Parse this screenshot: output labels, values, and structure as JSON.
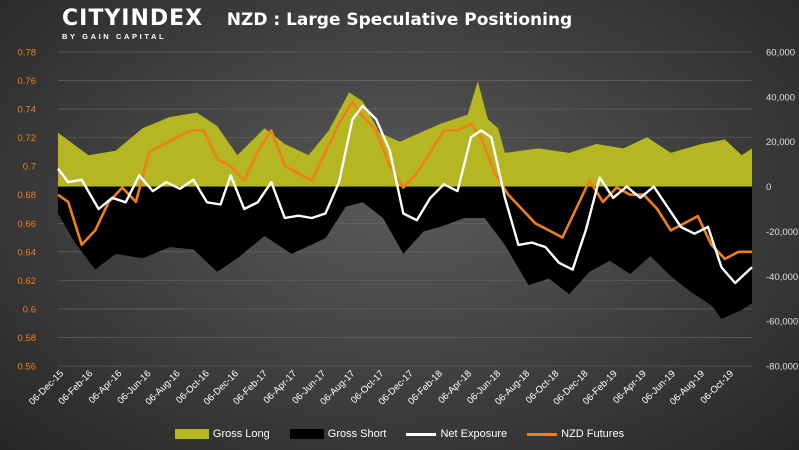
{
  "logo": {
    "main": "CITYINDEX",
    "sub": "BY GAIN CAPITAL"
  },
  "colors": {
    "gross_long": "#b5b722",
    "gross_short": "#000000",
    "net": "#ffffff",
    "futures": "#f07f1a",
    "left_tick": "#f07f1a",
    "right_tick": "#e0e0e0"
  },
  "chart_data": {
    "type": "area",
    "title": "NZD : Large Speculative Positioning",
    "xlabel": "",
    "y_left": {
      "label": "",
      "range": [
        0.56,
        0.78
      ],
      "ticks": [
        "0.56",
        "0.58",
        "0.6",
        "0.62",
        "0.64",
        "0.66",
        "0.68",
        "0.7",
        "0.72",
        "0.74",
        "0.76",
        "0.78"
      ]
    },
    "y_right": {
      "label": "",
      "range": [
        -80000,
        60000
      ],
      "ticks": [
        "-80,000",
        "-60,000",
        "-40,000",
        "-20,000",
        "0",
        "20,000",
        "40,000",
        "60,000"
      ]
    },
    "x_ticks": [
      "06-Dec-15",
      "06-Feb-16",
      "06-Apr-16",
      "06-Jun-16",
      "06-Aug-16",
      "06-Oct-16",
      "06-Dec-16",
      "06-Feb-17",
      "06-Apr-17",
      "06-Jun-17",
      "06-Aug-17",
      "06-Oct-17",
      "06-Dec-17",
      "06-Feb-18",
      "06-Apr-18",
      "06-Jun-18",
      "06-Aug-18",
      "06-Oct-18",
      "06-Dec-18",
      "06-Feb-19",
      "06-Apr-19",
      "06-Jun-19",
      "06-Aug-19",
      "06-Oct-19"
    ],
    "x_start": "2015-12-06",
    "x_end": "2019-11-10",
    "legend_position": "bottom",
    "series": [
      {
        "name": "Gross Long",
        "axis": "right",
        "type": "area",
        "points": [
          [
            "2015-12-06",
            24000
          ],
          [
            "2016-02-07",
            14000
          ],
          [
            "2016-04-03",
            16000
          ],
          [
            "2016-05-29",
            26000
          ],
          [
            "2016-07-24",
            31000
          ],
          [
            "2016-09-18",
            33000
          ],
          [
            "2016-10-30",
            27000
          ],
          [
            "2016-12-11",
            14000
          ],
          [
            "2017-02-05",
            26000
          ],
          [
            "2017-03-19",
            19000
          ],
          [
            "2017-05-07",
            14000
          ],
          [
            "2017-06-18",
            25000
          ],
          [
            "2017-07-30",
            42000
          ],
          [
            "2017-08-27",
            38000
          ],
          [
            "2017-10-01",
            24000
          ],
          [
            "2017-11-12",
            20000
          ],
          [
            "2017-12-24",
            24000
          ],
          [
            "2018-02-04",
            28000
          ],
          [
            "2018-04-01",
            32000
          ],
          [
            "2018-04-22",
            47000
          ],
          [
            "2018-05-13",
            30000
          ],
          [
            "2018-06-03",
            26000
          ],
          [
            "2018-06-17",
            15000
          ],
          [
            "2018-08-26",
            17000
          ],
          [
            "2018-10-28",
            15000
          ],
          [
            "2018-12-23",
            19000
          ],
          [
            "2019-02-17",
            17000
          ],
          [
            "2019-04-07",
            22000
          ],
          [
            "2019-05-26",
            15000
          ],
          [
            "2019-07-28",
            19000
          ],
          [
            "2019-09-15",
            21000
          ],
          [
            "2019-10-20",
            14000
          ],
          [
            "2019-11-10",
            17000
          ]
        ]
      },
      {
        "name": "Gross Short",
        "axis": "right",
        "type": "area",
        "points": [
          [
            "2015-12-06",
            -12000
          ],
          [
            "2016-01-10",
            -25000
          ],
          [
            "2016-02-21",
            -37000
          ],
          [
            "2016-04-03",
            -30000
          ],
          [
            "2016-05-29",
            -32000
          ],
          [
            "2016-07-24",
            -27000
          ],
          [
            "2016-09-11",
            -28000
          ],
          [
            "2016-10-30",
            -38000
          ],
          [
            "2016-12-11",
            -32000
          ],
          [
            "2017-02-05",
            -22000
          ],
          [
            "2017-04-02",
            -30000
          ],
          [
            "2017-06-11",
            -23000
          ],
          [
            "2017-07-23",
            -9000
          ],
          [
            "2017-08-27",
            -7000
          ],
          [
            "2017-10-08",
            -14000
          ],
          [
            "2017-11-19",
            -30000
          ],
          [
            "2017-12-31",
            -20000
          ],
          [
            "2018-02-04",
            -18000
          ],
          [
            "2018-03-25",
            -14000
          ],
          [
            "2018-05-06",
            -14000
          ],
          [
            "2018-06-17",
            -26000
          ],
          [
            "2018-08-05",
            -44000
          ],
          [
            "2018-09-16",
            -41000
          ],
          [
            "2018-10-28",
            -48000
          ],
          [
            "2018-12-09",
            -38000
          ],
          [
            "2019-01-20",
            -33000
          ],
          [
            "2019-03-03",
            -39000
          ],
          [
            "2019-04-14",
            -31000
          ],
          [
            "2019-05-26",
            -40000
          ],
          [
            "2019-07-07",
            -47000
          ],
          [
            "2019-08-18",
            -53000
          ],
          [
            "2019-09-08",
            -59000
          ],
          [
            "2019-10-20",
            -55000
          ],
          [
            "2019-11-10",
            -52000
          ]
        ]
      },
      {
        "name": "Net Exposure",
        "axis": "right",
        "type": "line",
        "points": [
          [
            "2015-12-06",
            8000
          ],
          [
            "2015-12-27",
            2000
          ],
          [
            "2016-01-24",
            3000
          ],
          [
            "2016-02-28",
            -10000
          ],
          [
            "2016-03-27",
            -5000
          ],
          [
            "2016-04-24",
            -7000
          ],
          [
            "2016-05-22",
            5000
          ],
          [
            "2016-06-19",
            -2000
          ],
          [
            "2016-07-17",
            2000
          ],
          [
            "2016-08-14",
            -1000
          ],
          [
            "2016-09-11",
            3000
          ],
          [
            "2016-10-09",
            -7000
          ],
          [
            "2016-11-06",
            -8000
          ],
          [
            "2016-11-27",
            5000
          ],
          [
            "2016-12-25",
            -10000
          ],
          [
            "2017-01-22",
            -7000
          ],
          [
            "2017-02-19",
            2000
          ],
          [
            "2017-03-19",
            -14000
          ],
          [
            "2017-04-16",
            -13000
          ],
          [
            "2017-05-14",
            -14000
          ],
          [
            "2017-06-11",
            -12000
          ],
          [
            "2017-07-09",
            2000
          ],
          [
            "2017-08-06",
            30000
          ],
          [
            "2017-08-27",
            36000
          ],
          [
            "2017-09-24",
            30000
          ],
          [
            "2017-10-22",
            16000
          ],
          [
            "2017-11-19",
            -12000
          ],
          [
            "2017-12-17",
            -15000
          ],
          [
            "2018-01-14",
            -5000
          ],
          [
            "2018-02-11",
            1000
          ],
          [
            "2018-03-11",
            -2000
          ],
          [
            "2018-04-08",
            22000
          ],
          [
            "2018-04-29",
            25000
          ],
          [
            "2018-05-20",
            22000
          ],
          [
            "2018-06-17",
            -5000
          ],
          [
            "2018-07-15",
            -26000
          ],
          [
            "2018-08-12",
            -25000
          ],
          [
            "2018-09-09",
            -27000
          ],
          [
            "2018-10-07",
            -34000
          ],
          [
            "2018-11-04",
            -37000
          ],
          [
            "2018-12-02",
            -19000
          ],
          [
            "2018-12-30",
            4000
          ],
          [
            "2019-01-27",
            -5000
          ],
          [
            "2019-02-24",
            0
          ],
          [
            "2019-03-24",
            -5000
          ],
          [
            "2019-04-21",
            0
          ],
          [
            "2019-05-19",
            -9000
          ],
          [
            "2019-06-16",
            -18000
          ],
          [
            "2019-07-14",
            -21000
          ],
          [
            "2019-08-11",
            -18000
          ],
          [
            "2019-09-08",
            -36000
          ],
          [
            "2019-10-06",
            -43000
          ],
          [
            "2019-11-10",
            -36000
          ]
        ]
      },
      {
        "name": "NZD Futures",
        "axis": "left",
        "type": "line",
        "points": [
          [
            "2015-12-06",
            0.68
          ],
          [
            "2015-12-27",
            0.675
          ],
          [
            "2016-01-24",
            0.645
          ],
          [
            "2016-02-21",
            0.655
          ],
          [
            "2016-03-20",
            0.675
          ],
          [
            "2016-04-17",
            0.685
          ],
          [
            "2016-05-15",
            0.675
          ],
          [
            "2016-06-12",
            0.71
          ],
          [
            "2016-07-10",
            0.715
          ],
          [
            "2016-08-07",
            0.72
          ],
          [
            "2016-09-04",
            0.725
          ],
          [
            "2016-10-02",
            0.725
          ],
          [
            "2016-10-30",
            0.705
          ],
          [
            "2016-11-27",
            0.7
          ],
          [
            "2016-12-25",
            0.69
          ],
          [
            "2017-01-22",
            0.71
          ],
          [
            "2017-02-19",
            0.725
          ],
          [
            "2017-03-19",
            0.7
          ],
          [
            "2017-04-16",
            0.695
          ],
          [
            "2017-05-14",
            0.69
          ],
          [
            "2017-06-11",
            0.71
          ],
          [
            "2017-07-09",
            0.73
          ],
          [
            "2017-08-06",
            0.745
          ],
          [
            "2017-08-27",
            0.735
          ],
          [
            "2017-09-24",
            0.725
          ],
          [
            "2017-10-22",
            0.7
          ],
          [
            "2017-11-19",
            0.685
          ],
          [
            "2017-12-17",
            0.695
          ],
          [
            "2018-01-14",
            0.71
          ],
          [
            "2018-02-11",
            0.725
          ],
          [
            "2018-03-11",
            0.725
          ],
          [
            "2018-04-08",
            0.73
          ],
          [
            "2018-04-29",
            0.72
          ],
          [
            "2018-05-27",
            0.695
          ],
          [
            "2018-06-24",
            0.68
          ],
          [
            "2018-07-22",
            0.67
          ],
          [
            "2018-08-19",
            0.66
          ],
          [
            "2018-09-16",
            0.655
          ],
          [
            "2018-10-14",
            0.65
          ],
          [
            "2018-11-11",
            0.67
          ],
          [
            "2018-12-09",
            0.69
          ],
          [
            "2019-01-06",
            0.675
          ],
          [
            "2019-02-03",
            0.685
          ],
          [
            "2019-03-03",
            0.68
          ],
          [
            "2019-03-31",
            0.68
          ],
          [
            "2019-04-28",
            0.67
          ],
          [
            "2019-05-26",
            0.655
          ],
          [
            "2019-06-23",
            0.66
          ],
          [
            "2019-07-21",
            0.665
          ],
          [
            "2019-08-18",
            0.645
          ],
          [
            "2019-09-15",
            0.635
          ],
          [
            "2019-10-13",
            0.64
          ],
          [
            "2019-11-10",
            0.64
          ]
        ]
      }
    ]
  }
}
